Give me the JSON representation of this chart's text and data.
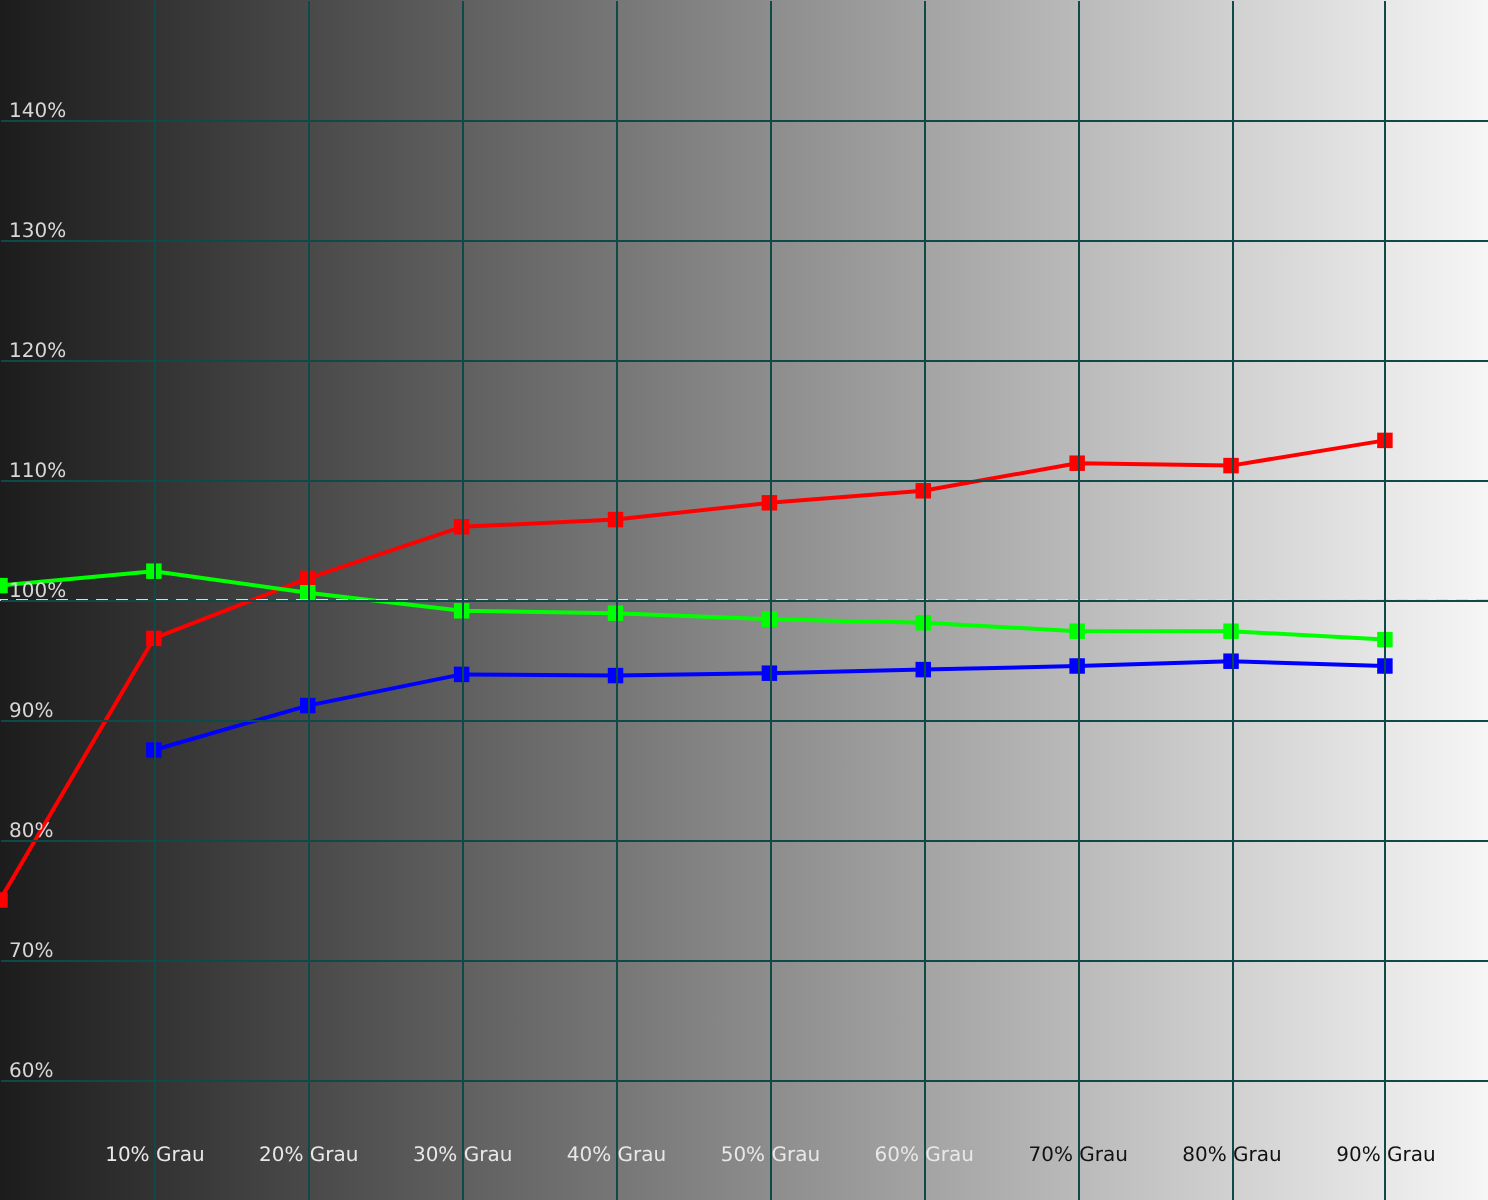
{
  "chart_data": {
    "type": "line",
    "x": [
      0,
      10,
      20,
      30,
      40,
      50,
      60,
      70,
      80,
      90
    ],
    "series": [
      {
        "color": "#ff0000",
        "values": [
          75,
          96.8,
          101.8,
          106.1,
          106.7,
          108.1,
          109.1,
          111.4,
          111.2,
          113.3
        ]
      },
      {
        "color": "#00ff00",
        "values": [
          101.2,
          102.4,
          100.6,
          99.1,
          98.9,
          98.4,
          98.1,
          97.4,
          97.4,
          96.7
        ]
      },
      {
        "color": "#0000ff",
        "values": [
          null,
          87.5,
          91.2,
          93.8,
          93.7,
          93.9,
          94.2,
          94.5,
          94.9,
          94.5
        ]
      }
    ],
    "xlim": [
      0,
      96.7
    ],
    "xticks": [
      {
        "value": 10,
        "label": "10% Grau"
      },
      {
        "value": 20,
        "label": "20% Grau"
      },
      {
        "value": 30,
        "label": "30% Grau"
      },
      {
        "value": 40,
        "label": "40% Grau"
      },
      {
        "value": 50,
        "label": "50% Grau"
      },
      {
        "value": 60,
        "label": "60% Grau"
      },
      {
        "value": 70,
        "label": "70% Grau"
      },
      {
        "value": 80,
        "label": "80% Grau"
      },
      {
        "value": 90,
        "label": "90% Grau"
      }
    ],
    "ylim": [
      50,
      150
    ],
    "yticks": [
      {
        "value": 60,
        "label": "60%"
      },
      {
        "value": 70,
        "label": "70%"
      },
      {
        "value": 80,
        "label": "80%"
      },
      {
        "value": 90,
        "label": "90%"
      },
      {
        "value": 100,
        "label": "100%"
      },
      {
        "value": 110,
        "label": "110%"
      },
      {
        "value": 120,
        "label": "120%"
      },
      {
        "value": 130,
        "label": "130%"
      },
      {
        "value": 140,
        "label": "140%"
      }
    ],
    "ref_lines": [
      {
        "axis": "y",
        "value": 100,
        "color": "#cfe0e0",
        "line_style": "dashed"
      }
    ],
    "grid": true,
    "marker": "square",
    "line_style": "solid"
  }
}
